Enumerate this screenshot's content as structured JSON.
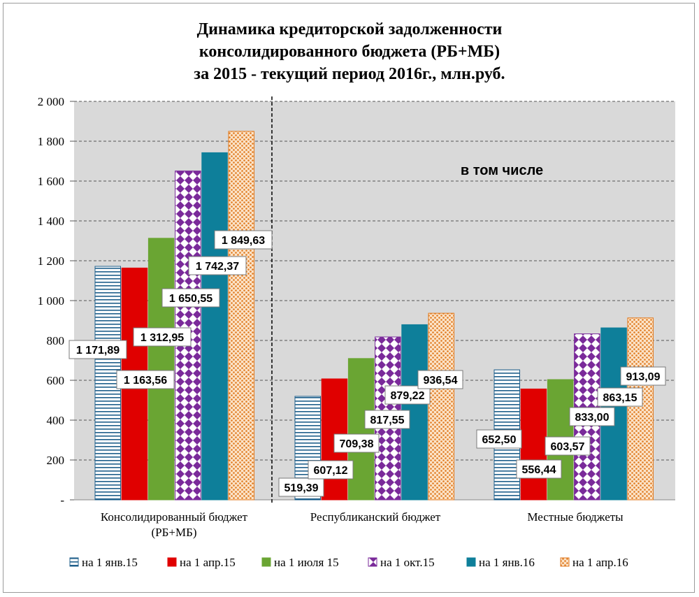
{
  "chart_data": {
    "type": "bar",
    "title": [
      "Динамика  кредиторской задолженности",
      "консолидированного бюджета (РБ+МБ)",
      "за 2015 - текущий период 2016г., млн.руб."
    ],
    "categories": [
      "Консолидированный бюджет\n(РБ+МБ)",
      "Республиканский бюджет",
      "Местные бюджеты"
    ],
    "series": [
      {
        "name": "на 1 янв.15",
        "color": "#1f5f8b",
        "pattern": "hlines",
        "values": [
          1171.89,
          519.39,
          652.5
        ],
        "labels": [
          "1 171,89",
          "519,39",
          "652,50"
        ]
      },
      {
        "name": "на 1 апр.15",
        "color": "#e00000",
        "pattern": "solid",
        "values": [
          1163.56,
          607.12,
          556.44
        ],
        "labels": [
          "1 163,56",
          "607,12",
          "556,44"
        ]
      },
      {
        "name": "на 1 июля 15",
        "color": "#6aa533",
        "pattern": "solid",
        "values": [
          1312.95,
          709.38,
          603.57
        ],
        "labels": [
          "1 312,95",
          "709,38",
          "603,57"
        ]
      },
      {
        "name": "на 1 окт.15",
        "color": "#7a2a9a",
        "pattern": "diamond",
        "values": [
          1650.55,
          817.55,
          833.0
        ],
        "labels": [
          "1 650,55",
          "817,55",
          "833,00"
        ]
      },
      {
        "name": "на 1 янв.16",
        "color": "#0e7f9a",
        "pattern": "solid",
        "values": [
          1742.37,
          879.22,
          863.15
        ],
        "labels": [
          "1 742,37",
          "879,22",
          "863,15"
        ]
      },
      {
        "name": "на 1 апр.16",
        "color": "#e07a20",
        "pattern": "dots",
        "values": [
          1849.63,
          936.54,
          913.09
        ],
        "labels": [
          "1 849,63",
          "936,54",
          "913,09"
        ]
      }
    ],
    "y_ticks": [
      "-",
      "200",
      "400",
      "600",
      "800",
      "1 000",
      "1 200",
      "1 400",
      "1 600",
      "1 800",
      "2 000"
    ],
    "ylim": [
      0,
      2000
    ],
    "annotation": "в том числе",
    "legend_position": "bottom",
    "grid": true
  }
}
